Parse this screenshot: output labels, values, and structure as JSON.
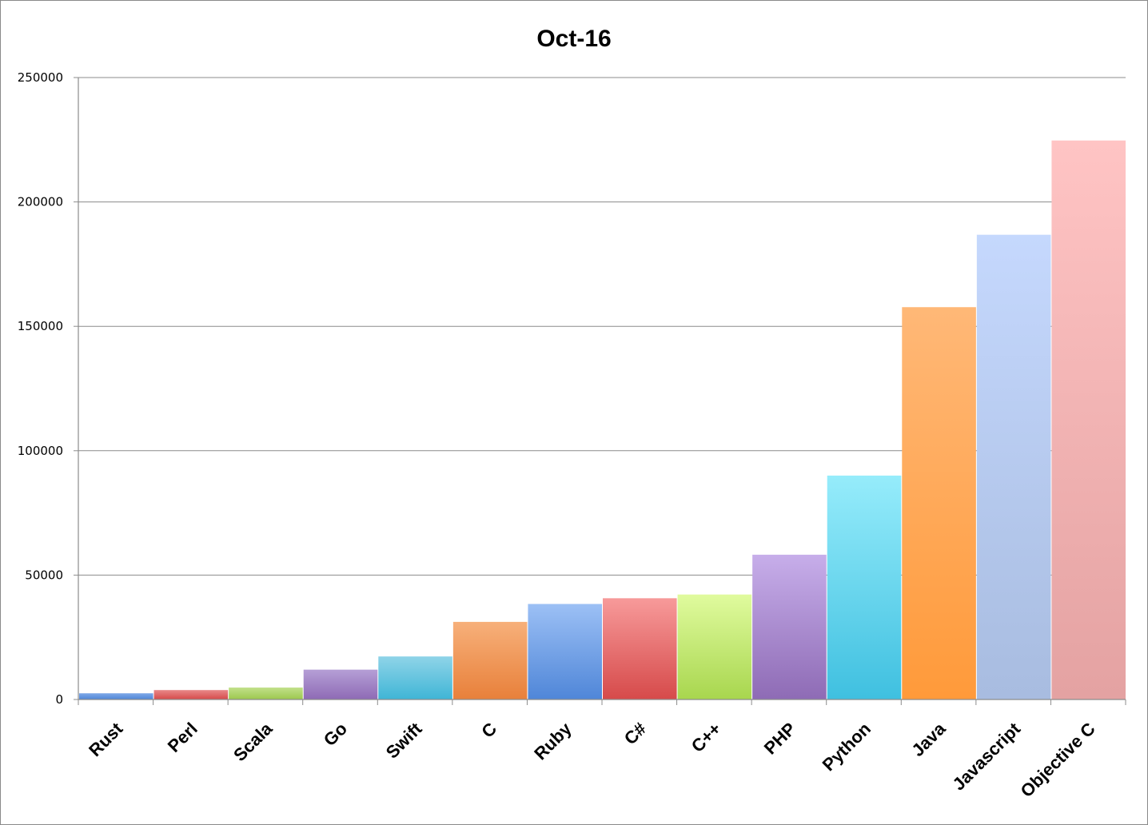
{
  "chart_data": {
    "type": "bar",
    "title": "Oct-16",
    "xlabel": "",
    "ylabel": "",
    "categories": [
      "Rust",
      "Perl",
      "Scala",
      "Go",
      "Swift",
      "C",
      "Ruby",
      "C#",
      "C++",
      "PHP",
      "Python",
      "Java",
      "Javascript",
      "Objective C"
    ],
    "values": [
      2500,
      3800,
      4800,
      12000,
      17300,
      31200,
      38400,
      40700,
      42200,
      58200,
      90000,
      157700,
      186800,
      224700
    ],
    "colors": [
      "#4f86d8",
      "#d64a4a",
      "#9cc84e",
      "#8e6bb5",
      "#3fb5d6",
      "#e8803a",
      "#4f86d8",
      "#d64a4a",
      "#a8d64e",
      "#8e6bb5",
      "#3fc0e0",
      "#ff9a3a",
      "#a8bce0",
      "#e4a2a2"
    ],
    "color_tops": [
      "#7fa9e8",
      "#e88888",
      "#c2e08a",
      "#b59fd6",
      "#8fd4e8",
      "#f7b07a",
      "#9cc0f5",
      "#f79a9a",
      "#e0fb9e",
      "#c7aeea",
      "#96ecfb",
      "#ffb877",
      "#c5d8fd",
      "#ffc4c4"
    ],
    "ylim": [
      0,
      250000
    ],
    "yticks": [
      0,
      50000,
      100000,
      150000,
      200000,
      250000
    ],
    "grid": true,
    "legend": "none"
  }
}
